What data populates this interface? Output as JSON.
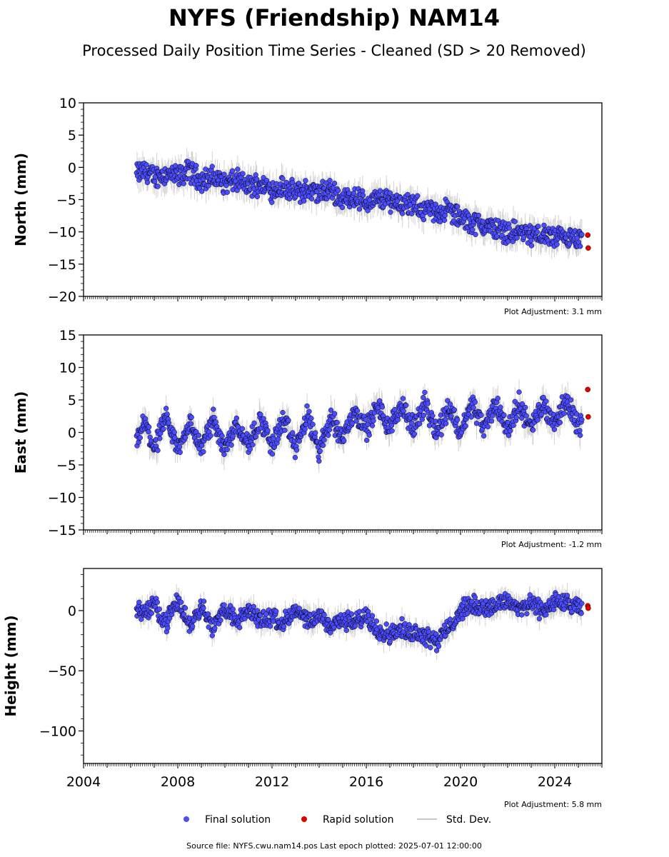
{
  "title": "NYFS (Friendship) NAM14",
  "subtitle": "Processed Daily Position Time Series - Cleaned (SD > 20 Removed)",
  "legend": {
    "final": "Final solution",
    "rapid": "Rapid solution",
    "std": "Std. Dev."
  },
  "footer": "Source file: NYFS.cwu.nam14.pos  Last epoch plotted: 2025-07-01 12:00:00",
  "colors": {
    "final": "#4b4bff",
    "rapid": "#e00000",
    "std": "#c8c8c8",
    "edge": "#000000"
  },
  "chart_data": [
    {
      "type": "scatter",
      "ylabel": "North (mm)",
      "adjustment": "Plot Adjustment: 3.1 mm",
      "xlim": [
        2004.0,
        2026.0
      ],
      "ylim": [
        -20,
        10
      ],
      "y_ticks": [
        -20,
        -15,
        -10,
        -5,
        0,
        5,
        10
      ],
      "y_tick_labels": [
        "−20",
        "−15",
        "−10",
        "−5",
        "0",
        "5",
        "10"
      ],
      "series": [
        {
          "name": "Final solution",
          "x": [
            2006.3,
            2006.6,
            2007.0,
            2007.5,
            2008.0,
            2008.5,
            2009.0,
            2009.5,
            2010.0,
            2010.5,
            2011.0,
            2011.5,
            2012.0,
            2012.5,
            2013.0,
            2013.5,
            2014.0,
            2014.5,
            2015.0,
            2015.5,
            2016.0,
            2016.5,
            2017.0,
            2017.5,
            2018.0,
            2018.5,
            2019.0,
            2019.5,
            2020.0,
            2020.5,
            2021.0,
            2021.5,
            2022.0,
            2022.5,
            2023.0,
            2023.5,
            2024.0,
            2024.5,
            2025.0
          ],
          "y": [
            -1.0,
            -0.5,
            -1.5,
            -1.0,
            -1.5,
            -0.5,
            -2.0,
            -1.5,
            -2.5,
            -2.0,
            -3.0,
            -2.5,
            -3.5,
            -3.0,
            -4.0,
            -3.5,
            -4.0,
            -3.5,
            -5.0,
            -4.5,
            -5.5,
            -5.0,
            -5.0,
            -5.5,
            -6.0,
            -6.5,
            -7.0,
            -6.5,
            -8.0,
            -8.5,
            -9.0,
            -9.5,
            -10.0,
            -10.0,
            -10.5,
            -10.5,
            -11.0,
            -11.0,
            -11.5
          ]
        },
        {
          "name": "Rapid solution",
          "x": [
            2025.4,
            2025.42
          ],
          "y": [
            -10.5,
            -12.5
          ]
        }
      ]
    },
    {
      "type": "scatter",
      "ylabel": "East (mm)",
      "adjustment": "Plot Adjustment: -1.2 mm",
      "xlim": [
        2004.0,
        2026.0
      ],
      "ylim": [
        -15,
        15
      ],
      "y_ticks": [
        -15,
        -10,
        -5,
        0,
        5,
        10,
        15
      ],
      "y_tick_labels": [
        "−15",
        "−10",
        "−5",
        "0",
        "5",
        "10",
        "15"
      ],
      "series": [
        {
          "name": "Final solution",
          "x": [
            2006.3,
            2006.6,
            2007.0,
            2007.5,
            2008.0,
            2008.5,
            2009.0,
            2009.5,
            2010.0,
            2010.5,
            2011.0,
            2011.5,
            2012.0,
            2012.5,
            2013.0,
            2013.5,
            2014.0,
            2014.5,
            2015.0,
            2015.5,
            2016.0,
            2016.5,
            2017.0,
            2017.5,
            2018.0,
            2018.5,
            2019.0,
            2019.5,
            2020.0,
            2020.5,
            2021.0,
            2021.5,
            2022.0,
            2022.5,
            2023.0,
            2023.5,
            2024.0,
            2024.5,
            2025.0
          ],
          "y": [
            -1.0,
            1.5,
            -2.5,
            2.0,
            -2.5,
            1.5,
            -2.5,
            2.0,
            -2.5,
            1.5,
            -2.0,
            2.0,
            -2.0,
            2.0,
            -2.5,
            2.5,
            -3.0,
            2.5,
            -1.0,
            3.5,
            0.5,
            4.0,
            0.5,
            4.5,
            0.5,
            4.5,
            0.0,
            4.0,
            0.0,
            4.5,
            0.5,
            4.5,
            0.5,
            4.5,
            0.5,
            4.5,
            1.5,
            5.0,
            1.0
          ]
        },
        {
          "name": "Rapid solution",
          "x": [
            2025.4,
            2025.42
          ],
          "y": [
            6.6,
            2.4
          ]
        }
      ]
    },
    {
      "type": "scatter",
      "ylabel": "Height (mm)",
      "adjustment": "Plot Adjustment: 5.8 mm",
      "xlim": [
        2004.0,
        2026.0
      ],
      "ylim": [
        -127,
        35
      ],
      "y_ticks": [
        -100,
        -50,
        0
      ],
      "y_tick_labels": [
        "−100",
        "−50",
        "0"
      ],
      "x_ticks": [
        2004,
        2008,
        2012,
        2016,
        2020,
        2024
      ],
      "x_tick_labels": [
        "2004",
        "2008",
        "2012",
        "2016",
        "2020",
        "2024"
      ],
      "series": [
        {
          "name": "Final solution",
          "x": [
            2006.3,
            2006.6,
            2007.0,
            2007.5,
            2008.0,
            2008.5,
            2009.0,
            2009.5,
            2010.0,
            2010.5,
            2011.0,
            2011.5,
            2012.0,
            2012.5,
            2013.0,
            2013.5,
            2014.0,
            2014.5,
            2015.0,
            2015.5,
            2016.0,
            2016.5,
            2017.0,
            2017.5,
            2018.0,
            2018.5,
            2019.0,
            2019.5,
            2020.0,
            2020.5,
            2021.0,
            2021.5,
            2022.0,
            2022.5,
            2023.0,
            2023.5,
            2024.0,
            2024.5,
            2025.0
          ],
          "y": [
            2,
            -2,
            5,
            -10,
            8,
            -12,
            5,
            -15,
            3,
            -10,
            0,
            -8,
            -5,
            -10,
            0,
            -10,
            -5,
            -12,
            -8,
            -10,
            -5,
            -15,
            -20,
            -15,
            -18,
            -20,
            -25,
            -15,
            0,
            5,
            2,
            5,
            8,
            2,
            5,
            0,
            8,
            5,
            2
          ]
        },
        {
          "name": "Rapid solution",
          "x": [
            2025.4,
            2025.42
          ],
          "y": [
            4,
            2
          ]
        }
      ]
    }
  ]
}
